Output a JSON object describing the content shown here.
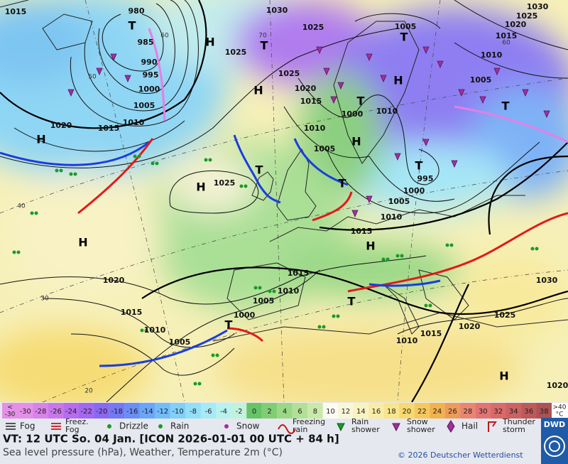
{
  "map": {
    "pressure_labels": [
      "1015",
      "980",
      "985",
      "990",
      "995",
      "1000",
      "1005",
      "1010",
      "1015",
      "1020",
      "1025",
      "1030",
      "1025",
      "1005",
      "1030",
      "1025",
      "1020",
      "1015",
      "1010",
      "1005",
      "1025",
      "1020",
      "1015",
      "1000",
      "1010",
      "1010",
      "1005",
      "1025",
      "995",
      "1000",
      "1005",
      "1010",
      "1015",
      "1015",
      "1010",
      "1005",
      "1020",
      "1015",
      "1010",
      "1005",
      "1000",
      "1030",
      "1025",
      "1020",
      "1015",
      "1010",
      "1020"
    ],
    "pressure_centers": [
      "H",
      "H",
      "T",
      "H",
      "T",
      "T",
      "H",
      "T",
      "T",
      "H",
      "T",
      "H",
      "T",
      "T",
      "H",
      "H",
      "T",
      "T",
      "H"
    ],
    "grid_labels": [
      "50",
      "40",
      "30",
      "20",
      "60",
      "70",
      "60"
    ]
  },
  "legend": {
    "below_label": [
      "<",
      "-30"
    ],
    "above_label": [
      ">40",
      "°C"
    ],
    "temperature_scale": [
      {
        "label": "-30",
        "color": "#e58fe8"
      },
      {
        "label": "-28",
        "color": "#d983ea"
      },
      {
        "label": "-26",
        "color": "#c877ea"
      },
      {
        "label": "-24",
        "color": "#b66ced"
      },
      {
        "label": "-22",
        "color": "#a467f0"
      },
      {
        "label": "-20",
        "color": "#8a69f2"
      },
      {
        "label": "-18",
        "color": "#7478f4"
      },
      {
        "label": "-16",
        "color": "#6a8ef6"
      },
      {
        "label": "-14",
        "color": "#6aa6f8"
      },
      {
        "label": "-12",
        "color": "#72bcf8"
      },
      {
        "label": "-10",
        "color": "#80d0f8"
      },
      {
        "label": "-8",
        "color": "#92dff8"
      },
      {
        "label": "-6",
        "color": "#a6eaf6"
      },
      {
        "label": "-4",
        "color": "#b8f2ee"
      },
      {
        "label": "-2",
        "color": "#c2f2dc"
      },
      {
        "label": "0",
        "color": "#66c466"
      },
      {
        "label": "2",
        "color": "#80ce74"
      },
      {
        "label": "4",
        "color": "#9ad886"
      },
      {
        "label": "6",
        "color": "#b2e096"
      },
      {
        "label": "8",
        "color": "#cae9a8"
      },
      {
        "label": "10",
        "color": "#fbfbf4"
      },
      {
        "label": "12",
        "color": "#f9f7da"
      },
      {
        "label": "14",
        "color": "#f9f3c0"
      },
      {
        "label": "16",
        "color": "#f9eda6"
      },
      {
        "label": "18",
        "color": "#f8e58c"
      },
      {
        "label": "20",
        "color": "#f8d870"
      },
      {
        "label": "22",
        "color": "#f6c85c"
      },
      {
        "label": "24",
        "color": "#f2b24c"
      },
      {
        "label": "26",
        "color": "#ec9c58"
      },
      {
        "label": "28",
        "color": "#e88670"
      },
      {
        "label": "30",
        "color": "#e27474"
      },
      {
        "label": "32",
        "color": "#d86a6a"
      },
      {
        "label": "34",
        "color": "#cc6262"
      },
      {
        "label": "36",
        "color": "#bc5a5a"
      },
      {
        "label": "38",
        "color": "#ac5252"
      }
    ],
    "weather": [
      {
        "label": [
          "Fog"
        ]
      },
      {
        "label": [
          "Freez.",
          "Fog"
        ]
      },
      {
        "label": [
          "Drizzle"
        ]
      },
      {
        "label": [
          "Rain"
        ]
      },
      {
        "label": [
          "Snow"
        ]
      },
      {
        "label": [
          "Freezing",
          "rain"
        ]
      },
      {
        "label": [
          "Rain",
          "shower"
        ]
      },
      {
        "label": [
          "Snow",
          "shower"
        ]
      },
      {
        "label": [
          "Hail"
        ]
      },
      {
        "label": [
          "Thunder",
          "storm"
        ]
      }
    ]
  },
  "footer": {
    "valid_time": "VT: 12 UTC So.  04 Jan. [ICON 2026-01-01  00 UTC + 84 h]",
    "description": "Sea level pressure (hPa), Weather, Temperature 2m (°C)",
    "copyright": "© 2026 Deutscher Wetterdienst",
    "logo": "DWD"
  }
}
